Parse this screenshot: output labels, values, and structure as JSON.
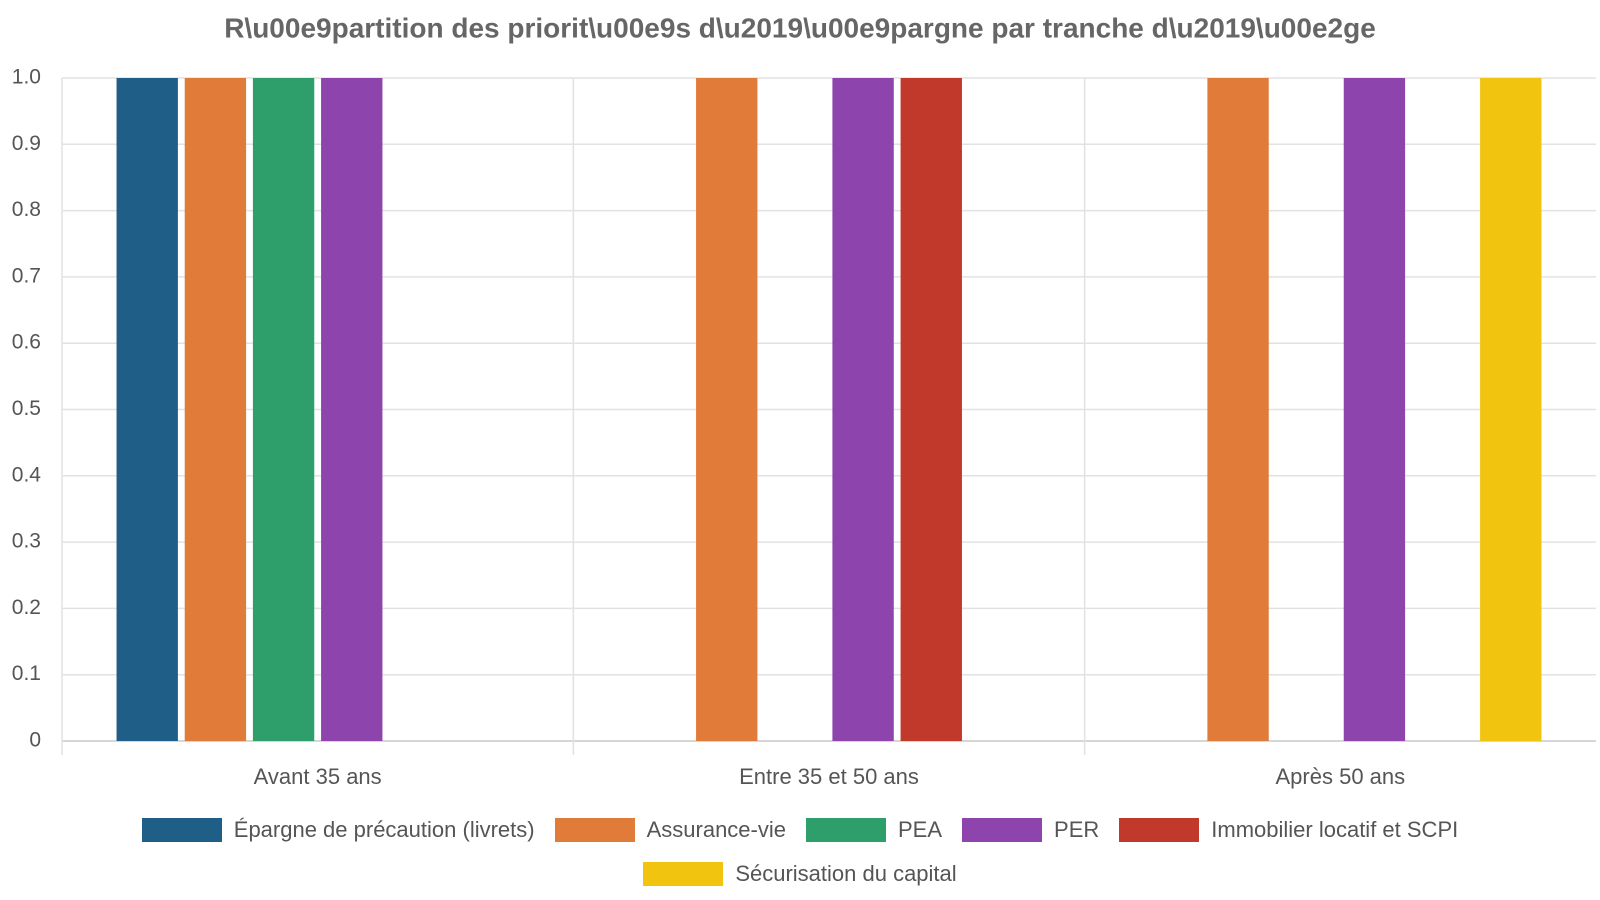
{
  "chart_data": {
    "type": "bar",
    "title": "R\\u00e9partition des priorit\\u00e9s d\\u2019\\u00e9pargne par tranche d\\u2019\\u00e2ge",
    "xlabel": "",
    "ylabel": "",
    "categories": [
      "Avant 35 ans",
      "Entre 35 et 50 ans",
      "Après 50 ans"
    ],
    "ylim": [
      0,
      1
    ],
    "yticks": [
      "0",
      "0.1",
      "0.2",
      "0.3",
      "0.4",
      "0.5",
      "0.6",
      "0.7",
      "0.8",
      "0.9",
      "1.0"
    ],
    "grid": true,
    "legend": "bottom",
    "series": [
      {
        "name": "Épargne de précaution (livrets)",
        "color": "#1f5e87",
        "values": [
          1,
          0,
          0
        ]
      },
      {
        "name": "Assurance-vie",
        "color": "#e07b39",
        "values": [
          1,
          1,
          1
        ]
      },
      {
        "name": "PEA",
        "color": "#2e9e6b",
        "values": [
          1,
          0,
          0
        ]
      },
      {
        "name": "PER",
        "color": "#8e44ad",
        "values": [
          1,
          1,
          1
        ]
      },
      {
        "name": "Immobilier locatif et SCPI",
        "color": "#c0392b",
        "values": [
          0,
          1,
          0
        ]
      },
      {
        "name": "Sécurisation du capital",
        "color": "#f1c40f",
        "values": [
          0,
          0,
          1
        ]
      }
    ]
  }
}
